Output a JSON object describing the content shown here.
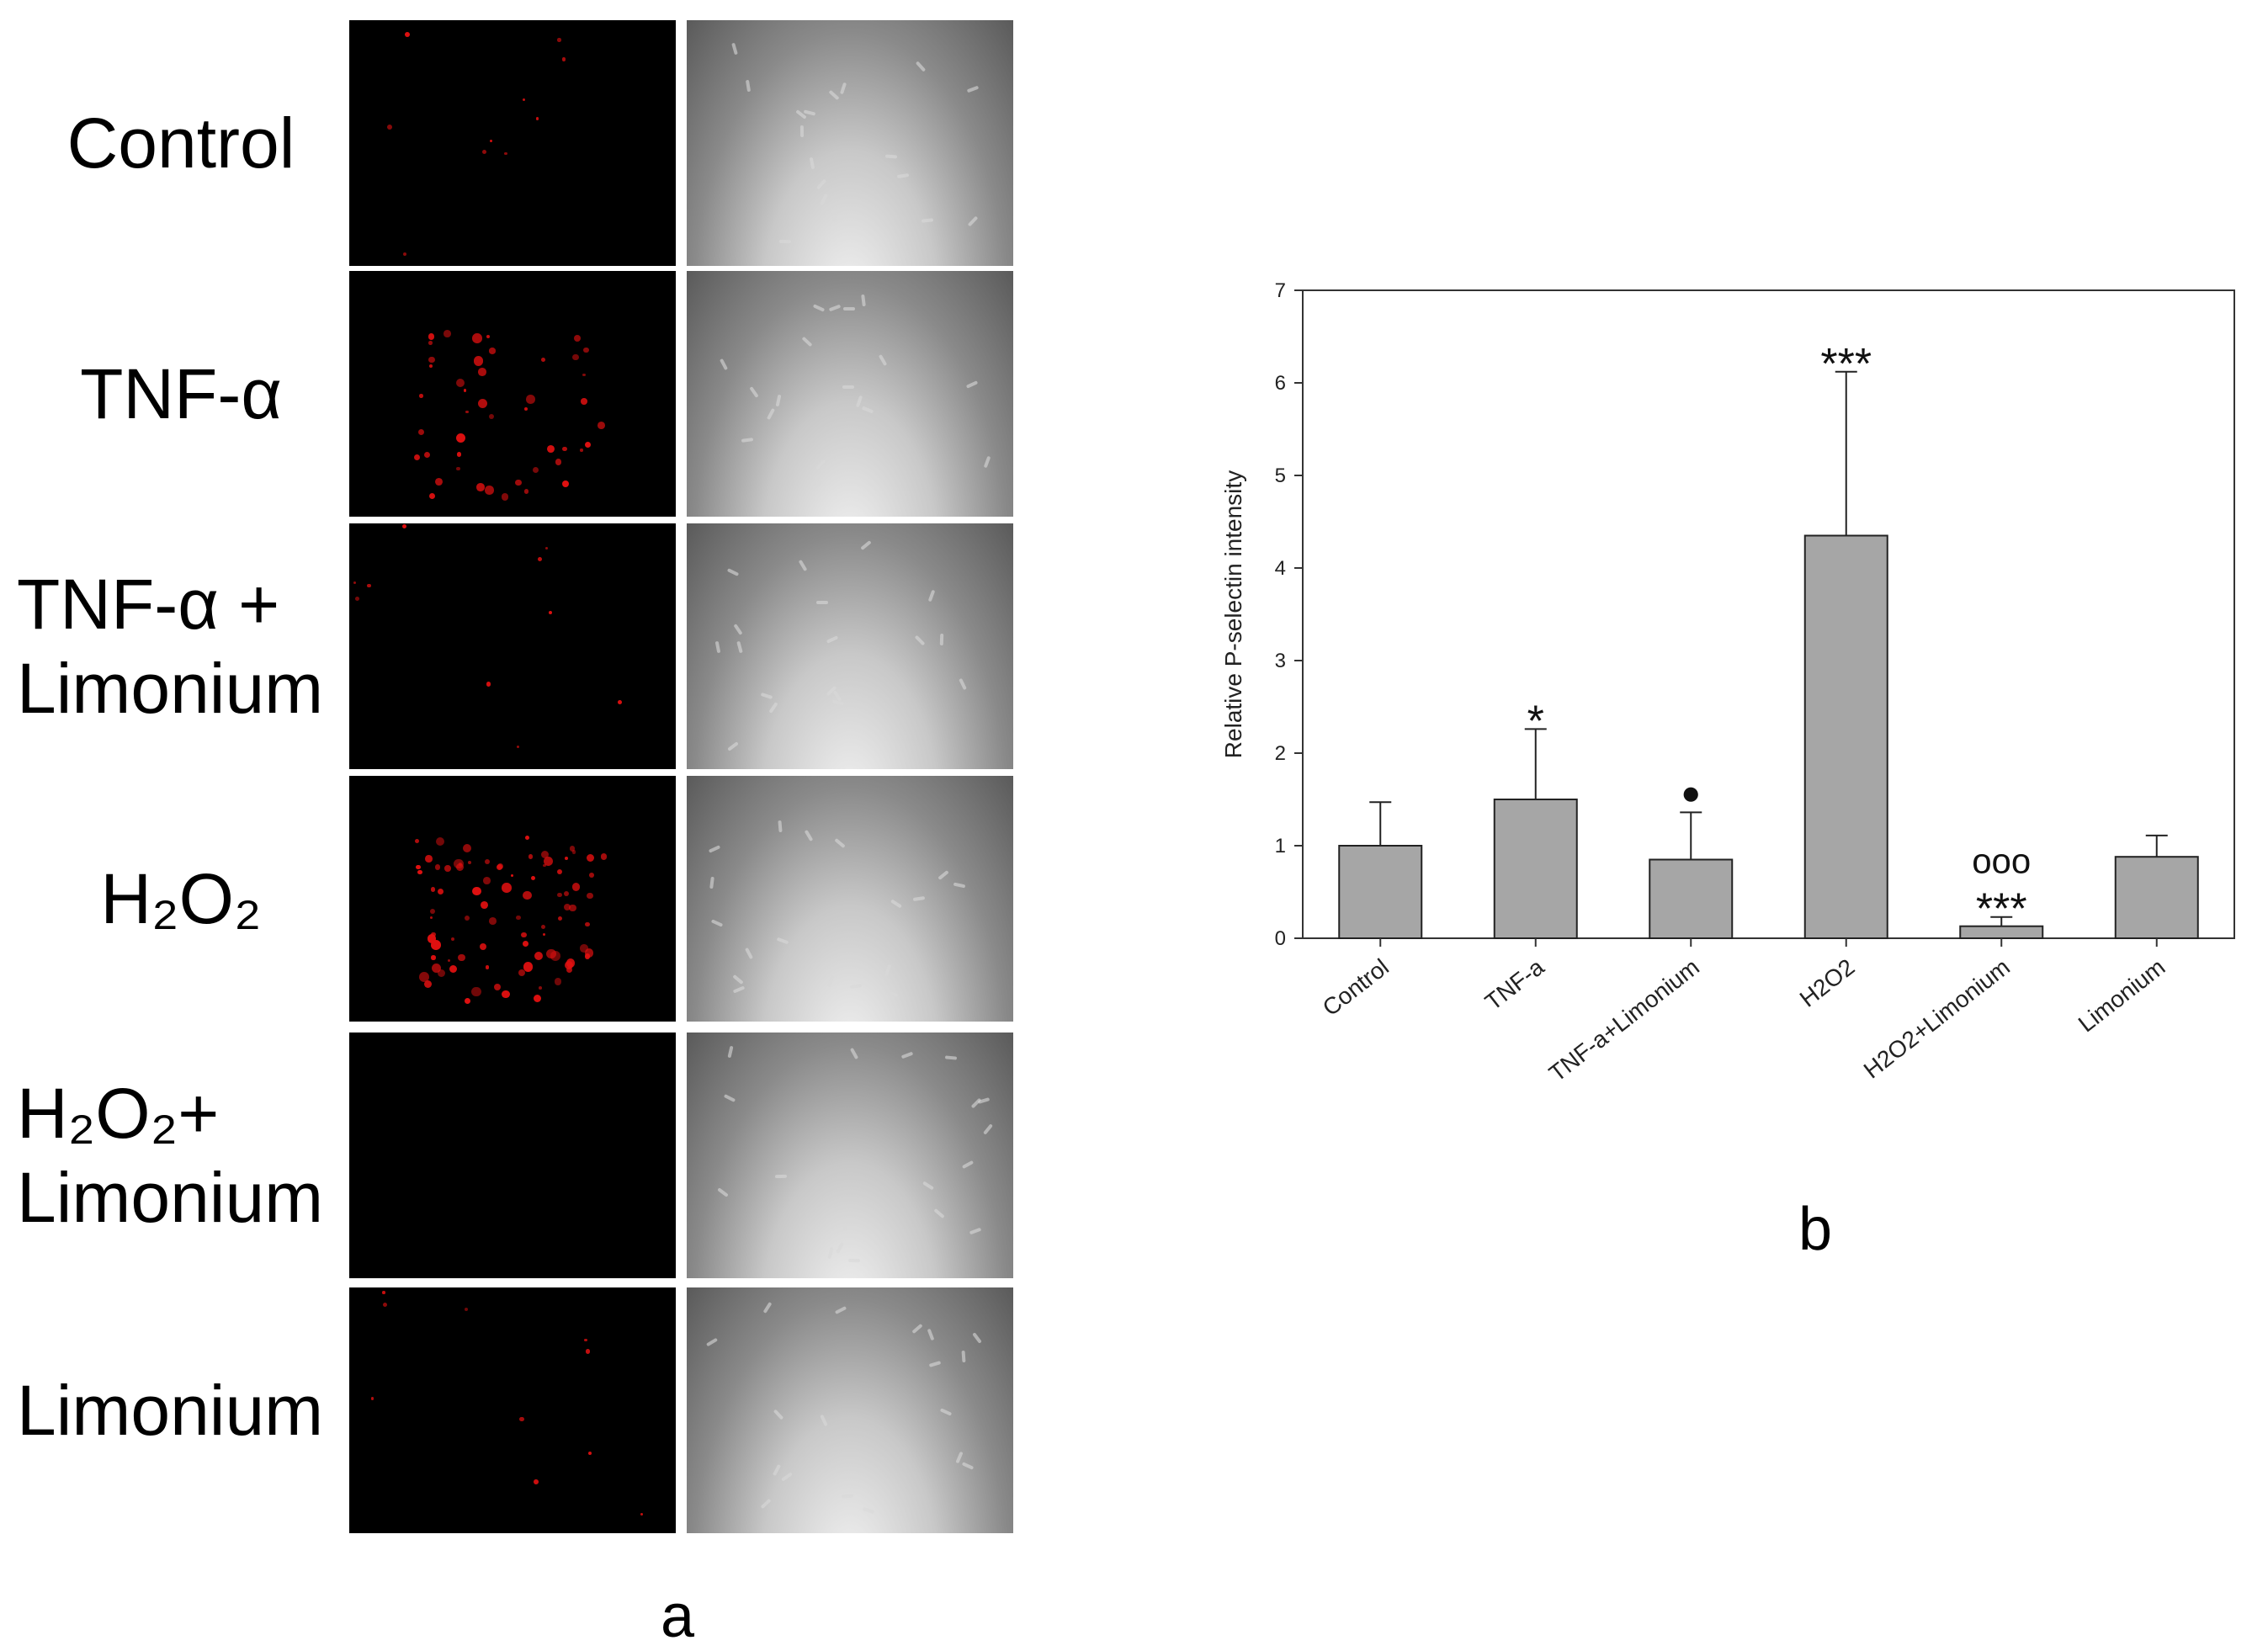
{
  "panel_a": {
    "letter": "a",
    "rows": [
      {
        "label_lines": [
          "Control"
        ],
        "align": "center",
        "fluor_intensity": "low"
      },
      {
        "label_lines": [
          "TNF-α"
        ],
        "align": "center",
        "fluor_intensity": "medium"
      },
      {
        "label_lines": [
          "TNF-α +",
          "Limonium"
        ],
        "align": "left",
        "fluor_intensity": "low"
      },
      {
        "label_lines": [
          "H₂O₂"
        ],
        "align": "center",
        "fluor_intensity": "high"
      },
      {
        "label_lines": [
          "H₂O₂+",
          "Limonium"
        ],
        "align": "left",
        "fluor_intensity": "none"
      },
      {
        "label_lines": [
          "Limonium"
        ],
        "align": "left",
        "fluor_intensity": "low"
      }
    ]
  },
  "panel_b": {
    "letter": "b"
  },
  "chart_data": {
    "type": "bar",
    "title": "",
    "xlabel": "",
    "ylabel": "Relative P-selectin intensity",
    "ylim": [
      0,
      7
    ],
    "yticks": [
      0,
      1,
      2,
      3,
      4,
      5,
      6,
      7
    ],
    "grid": false,
    "categories": [
      "Control",
      "TNF-a",
      "TNF-a+Limonium",
      "H2O2",
      "H2O2+Limonium",
      "Limonium"
    ],
    "values": [
      1.0,
      1.5,
      0.85,
      4.35,
      0.13,
      0.88
    ],
    "error_upper": [
      1.47,
      2.26,
      1.36,
      6.12,
      0.23,
      1.11
    ],
    "annotations": [
      {
        "category": "TNF-a",
        "lines": [
          "*"
        ]
      },
      {
        "category": "TNF-a+Limonium",
        "lines": [
          "●"
        ]
      },
      {
        "category": "H2O2",
        "lines": [
          "***"
        ]
      },
      {
        "category": "H2O2+Limonium",
        "lines": [
          "ooo",
          "***"
        ]
      }
    ],
    "colors": {
      "bar": "#a6a6a6",
      "bar_stroke": "#222222"
    }
  }
}
